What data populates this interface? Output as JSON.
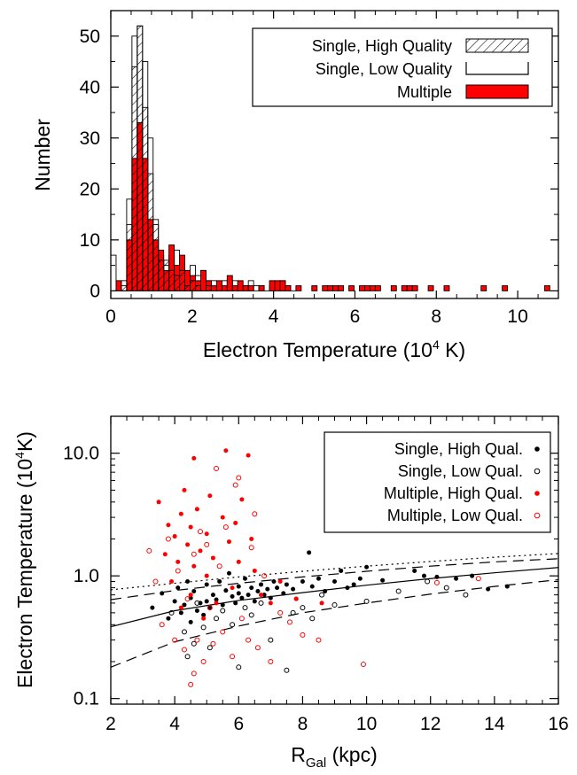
{
  "chart_data": [
    {
      "type": "histogram",
      "xlabel": "Electron Temperature (10",
      "xlabel_sup": "4",
      "xlabel_suffix": " K)",
      "ylabel": "Number",
      "xlim": [
        0,
        11
      ],
      "ylim": [
        -1.5,
        55
      ],
      "bin_width": 0.13,
      "xticks": [
        0,
        2,
        4,
        6,
        8,
        10
      ],
      "yticks": [
        0,
        10,
        20,
        30,
        40,
        50
      ],
      "legend_position": "top-right",
      "legend": [
        {
          "label": "Single, High Quality",
          "style": "hatched"
        },
        {
          "label": "Single, Low Quality",
          "style": "open"
        },
        {
          "label": "Multiple",
          "style": "filled",
          "color": "#ff0000"
        }
      ],
      "series": [
        {
          "name": "Single, Low Quality",
          "bin_starts": [
            0.0,
            0.13,
            0.26,
            0.39,
            0.52,
            0.65,
            0.78,
            0.91,
            1.04,
            1.17,
            1.3,
            1.43,
            1.56,
            1.69,
            1.82,
            1.95,
            2.08,
            2.21,
            2.34,
            2.47,
            2.6,
            2.73,
            2.86,
            2.99,
            3.12,
            3.25,
            3.38,
            3.51,
            3.64,
            3.77,
            3.9,
            4.03,
            4.16,
            4.29,
            4.42
          ],
          "values": [
            7,
            0,
            2,
            18,
            50,
            52,
            45,
            30,
            14,
            7,
            5,
            7,
            8,
            6,
            3,
            5,
            3,
            4,
            2,
            2,
            1,
            2,
            1,
            2,
            1,
            1,
            2,
            1,
            1,
            0,
            1,
            1,
            2,
            1,
            0
          ]
        },
        {
          "name": "Single, High Quality",
          "bin_starts": [
            0.26,
            0.39,
            0.52,
            0.65,
            0.78,
            0.91,
            1.04,
            1.17,
            1.3,
            1.43,
            1.56,
            1.69,
            1.82,
            1.95,
            2.08,
            2.34
          ],
          "values": [
            1,
            13,
            44,
            52,
            36,
            23,
            13,
            6,
            6,
            4,
            3,
            4,
            1,
            2,
            1,
            1
          ]
        },
        {
          "name": "Multiple",
          "color": "#ff0000",
          "bin_starts": [
            0.13,
            0.26,
            0.39,
            0.52,
            0.65,
            0.78,
            0.91,
            1.04,
            1.17,
            1.3,
            1.43,
            1.56,
            1.69,
            1.82,
            1.95,
            2.08,
            2.21,
            2.34,
            2.47,
            2.6,
            2.73,
            2.86,
            2.99,
            3.12,
            3.25,
            3.38,
            3.64,
            3.9,
            4.03,
            4.16,
            4.29,
            4.55,
            4.94,
            5.2,
            5.33,
            5.46,
            5.59,
            5.85,
            6.11,
            6.24,
            6.37,
            6.5,
            6.89,
            7.15,
            7.28,
            7.41,
            7.8,
            8.19,
            9.1,
            9.62,
            10.66
          ],
          "values": [
            2,
            0,
            10,
            26,
            33,
            26,
            14,
            10,
            8,
            4,
            9,
            5,
            7,
            4,
            3,
            2,
            4,
            2,
            1,
            2,
            1,
            3,
            1,
            2,
            1,
            1,
            1,
            2,
            2,
            2,
            1,
            1,
            1,
            1,
            1,
            1,
            1,
            1,
            1,
            1,
            1,
            1,
            1,
            1,
            1,
            1,
            1,
            1,
            1,
            1,
            1
          ]
        }
      ]
    },
    {
      "type": "scatter",
      "xlabel": "R",
      "xlabel_sub": "Gal",
      "xlabel_suffix": " (kpc)",
      "ylabel": "Electron Temperature (10",
      "ylabel_sup": "4",
      "ylabel_suffix": "K)",
      "xlim": [
        2,
        16
      ],
      "ylim": [
        0.09,
        20
      ],
      "yscale": "log",
      "xticks": [
        2,
        4,
        6,
        8,
        10,
        12,
        14,
        16
      ],
      "yticks": [
        0.1,
        1.0,
        10.0
      ],
      "ytick_labels": [
        "0.1",
        "1.0",
        "10.0"
      ],
      "legend_position": "top-right",
      "legend": [
        {
          "label": "Single, High Qual.",
          "marker": "filled",
          "color": "#000000"
        },
        {
          "label": "Single, Low Qual.",
          "marker": "open",
          "color": "#000000"
        },
        {
          "label": "Multiple, High Qual.",
          "marker": "filled",
          "color": "#ff0000"
        },
        {
          "label": "Multiple, Low Qual.",
          "marker": "open",
          "color": "#ff0000"
        }
      ],
      "lines": [
        {
          "style": "solid",
          "points": [
            [
              2,
              0.385
            ],
            [
              4,
              0.52
            ],
            [
              6,
              0.63
            ],
            [
              8,
              0.73
            ],
            [
              10,
              0.84
            ],
            [
              12,
              0.95
            ],
            [
              14,
              1.06
            ],
            [
              16,
              1.17
            ]
          ]
        },
        {
          "style": "dashed",
          "points": [
            [
              2,
              0.64
            ],
            [
              4,
              0.76
            ],
            [
              6,
              0.87
            ],
            [
              8,
              0.98
            ],
            [
              10,
              1.09
            ],
            [
              12,
              1.2
            ],
            [
              14,
              1.3
            ],
            [
              16,
              1.38
            ]
          ]
        },
        {
          "style": "dashed",
          "points": [
            [
              2,
              0.18
            ],
            [
              4,
              0.29
            ],
            [
              6,
              0.39
            ],
            [
              8,
              0.5
            ],
            [
              10,
              0.6
            ],
            [
              12,
              0.71
            ],
            [
              14,
              0.82
            ],
            [
              16,
              0.93
            ]
          ]
        },
        {
          "style": "dotted",
          "points": [
            [
              2,
              0.77
            ],
            [
              4,
              0.87
            ],
            [
              6,
              0.98
            ],
            [
              8,
              1.09
            ],
            [
              10,
              1.2
            ],
            [
              12,
              1.31
            ],
            [
              14,
              1.42
            ],
            [
              16,
              1.52
            ]
          ]
        }
      ],
      "series": [
        {
          "name": "Single, High Qual.",
          "marker": "filled",
          "color": "#000000",
          "points": [
            [
              3.3,
              0.55
            ],
            [
              3.6,
              0.72
            ],
            [
              3.8,
              0.45
            ],
            [
              4.0,
              0.62
            ],
            [
              4.1,
              0.8
            ],
            [
              4.2,
              0.5
            ],
            [
              4.3,
              0.58
            ],
            [
              4.4,
              0.9
            ],
            [
              4.5,
              0.42
            ],
            [
              4.5,
              0.66
            ],
            [
              4.6,
              0.75
            ],
            [
              4.7,
              0.52
            ],
            [
              4.8,
              0.6
            ],
            [
              4.9,
              0.48
            ],
            [
              5.0,
              0.85
            ],
            [
              5.0,
              0.62
            ],
            [
              5.1,
              0.55
            ],
            [
              5.2,
              0.7
            ],
            [
              5.3,
              0.64
            ],
            [
              5.4,
              0.9
            ],
            [
              5.5,
              0.58
            ],
            [
              5.6,
              0.76
            ],
            [
              5.7,
              1.05
            ],
            [
              5.8,
              0.68
            ],
            [
              5.9,
              0.6
            ],
            [
              6.0,
              0.82
            ],
            [
              6.0,
              0.72
            ],
            [
              6.1,
              0.66
            ],
            [
              6.2,
              0.95
            ],
            [
              6.3,
              0.7
            ],
            [
              6.4,
              0.8
            ],
            [
              6.5,
              0.62
            ],
            [
              6.6,
              0.75
            ],
            [
              6.7,
              0.85
            ],
            [
              6.8,
              0.7
            ],
            [
              6.9,
              0.78
            ],
            [
              7.0,
              0.66
            ],
            [
              7.1,
              0.9
            ],
            [
              7.2,
              0.8
            ],
            [
              7.4,
              0.72
            ],
            [
              7.5,
              0.85
            ],
            [
              7.7,
              0.78
            ],
            [
              7.8,
              0.65
            ],
            [
              8.0,
              0.9
            ],
            [
              8.2,
              1.55
            ],
            [
              8.3,
              0.82
            ],
            [
              8.5,
              0.95
            ],
            [
              8.7,
              0.75
            ],
            [
              9.0,
              0.9
            ],
            [
              9.2,
              1.1
            ],
            [
              9.4,
              0.8
            ],
            [
              9.6,
              0.85
            ],
            [
              9.8,
              0.95
            ],
            [
              10.0,
              1.18
            ],
            [
              10.5,
              0.92
            ],
            [
              11.5,
              1.1
            ],
            [
              11.8,
              1.0
            ],
            [
              12.2,
              0.98
            ],
            [
              12.8,
              0.95
            ],
            [
              13.3,
              1.0
            ],
            [
              13.8,
              0.78
            ],
            [
              14.4,
              0.82
            ]
          ]
        },
        {
          "name": "Single, Low Qual.",
          "marker": "open",
          "color": "#000000",
          "points": [
            [
              3.9,
              0.5
            ],
            [
              4.3,
              0.35
            ],
            [
              4.4,
              0.22
            ],
            [
              4.6,
              0.28
            ],
            [
              4.7,
              0.6
            ],
            [
              4.9,
              0.38
            ],
            [
              5.1,
              0.26
            ],
            [
              5.3,
              0.45
            ],
            [
              5.5,
              0.52
            ],
            [
              5.8,
              0.4
            ],
            [
              6.0,
              0.18
            ],
            [
              6.2,
              0.55
            ],
            [
              6.4,
              0.48
            ],
            [
              6.7,
              0.6
            ],
            [
              7.0,
              0.3
            ],
            [
              7.5,
              0.17
            ],
            [
              7.7,
              0.5
            ],
            [
              8.0,
              0.55
            ],
            [
              8.3,
              0.45
            ],
            [
              8.6,
              0.7
            ],
            [
              9.0,
              0.58
            ],
            [
              10.0,
              0.62
            ],
            [
              11.0,
              0.75
            ],
            [
              11.9,
              0.9
            ],
            [
              12.5,
              0.8
            ],
            [
              13.1,
              0.7
            ]
          ]
        },
        {
          "name": "Multiple, High Qual.",
          "marker": "filled",
          "color": "#ff0000",
          "points": [
            [
              3.5,
              4.0
            ],
            [
              3.7,
              1.5
            ],
            [
              3.8,
              2.6
            ],
            [
              3.9,
              0.9
            ],
            [
              4.0,
              2.1
            ],
            [
              4.1,
              1.3
            ],
            [
              4.2,
              3.2
            ],
            [
              4.2,
              0.55
            ],
            [
              4.3,
              5.0
            ],
            [
              4.4,
              1.8
            ],
            [
              4.5,
              2.5
            ],
            [
              4.5,
              0.7
            ],
            [
              4.6,
              9.1
            ],
            [
              4.6,
              1.2
            ],
            [
              4.7,
              3.5
            ],
            [
              4.8,
              1.6
            ],
            [
              4.9,
              0.45
            ],
            [
              5.0,
              2.2
            ],
            [
              5.0,
              1.0
            ],
            [
              5.1,
              4.5
            ],
            [
              5.2,
              1.4
            ],
            [
              5.3,
              0.6
            ],
            [
              5.5,
              3.0
            ],
            [
              5.6,
              10.5
            ],
            [
              5.7,
              1.9
            ],
            [
              5.8,
              0.8
            ],
            [
              5.9,
              2.7
            ],
            [
              6.0,
              1.3
            ],
            [
              6.1,
              4.2
            ],
            [
              6.3,
              9.6
            ],
            [
              6.4,
              2.0
            ],
            [
              6.5,
              1.1
            ],
            [
              6.7,
              0.7
            ],
            [
              7.0,
              0.6
            ],
            [
              7.3,
              0.9
            ],
            [
              7.8,
              0.65
            ],
            [
              8.6,
              0.6
            ]
          ]
        },
        {
          "name": "Multiple, Low Qual.",
          "marker": "open",
          "color": "#ff0000",
          "points": [
            [
              3.2,
              1.6
            ],
            [
              3.4,
              0.9
            ],
            [
              3.6,
              0.4
            ],
            [
              3.8,
              2.0
            ],
            [
              4.0,
              0.3
            ],
            [
              4.1,
              1.1
            ],
            [
              4.3,
              0.25
            ],
            [
              4.4,
              0.65
            ],
            [
              4.5,
              0.13
            ],
            [
              4.6,
              0.16
            ],
            [
              4.6,
              1.5
            ],
            [
              4.7,
              0.3
            ],
            [
              4.8,
              2.3
            ],
            [
              4.9,
              0.2
            ],
            [
              5.0,
              1.8
            ],
            [
              5.1,
              0.55
            ],
            [
              5.2,
              0.28
            ],
            [
              5.3,
              7.5
            ],
            [
              5.4,
              1.2
            ],
            [
              5.5,
              0.35
            ],
            [
              5.6,
              2.5
            ],
            [
              5.8,
              0.22
            ],
            [
              5.9,
              5.5
            ],
            [
              6.0,
              6.3
            ],
            [
              6.1,
              0.45
            ],
            [
              6.3,
              0.3
            ],
            [
              6.4,
              1.7
            ],
            [
              6.5,
              3.2
            ],
            [
              6.6,
              0.26
            ],
            [
              6.8,
              1.0
            ],
            [
              7.0,
              0.2
            ],
            [
              7.3,
              0.5
            ],
            [
              7.6,
              0.42
            ],
            [
              8.0,
              0.33
            ],
            [
              8.5,
              0.3
            ],
            [
              9.9,
              0.19
            ],
            [
              12.2,
              0.88
            ],
            [
              13.5,
              0.95
            ]
          ]
        }
      ]
    }
  ]
}
